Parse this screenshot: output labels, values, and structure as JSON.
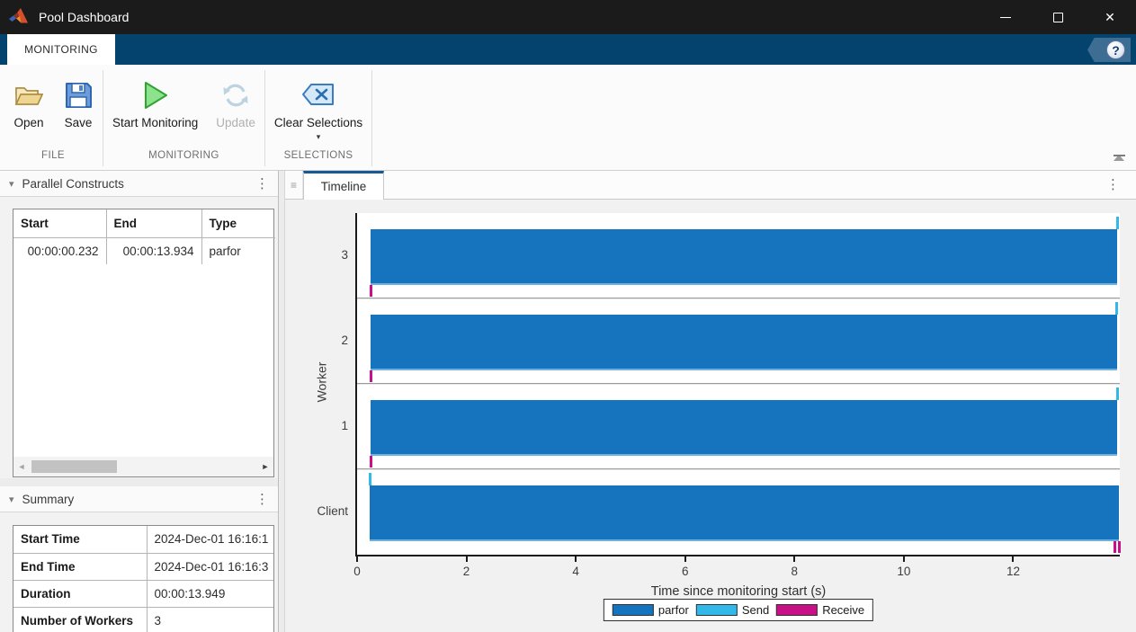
{
  "window": {
    "title": "Pool Dashboard"
  },
  "icons": {
    "close": "✕",
    "help": "?",
    "kebab": "⋮",
    "collapse": "▾",
    "dropdown": "▾",
    "handle": "≡",
    "scroll_left": "◄",
    "scroll_right": "►"
  },
  "ribbon": {
    "tab": "MONITORING"
  },
  "toolbar": {
    "groups": [
      {
        "label": "FILE",
        "buttons": [
          {
            "label": "Open"
          },
          {
            "label": "Save"
          }
        ]
      },
      {
        "label": "MONITORING",
        "buttons": [
          {
            "label": "Start Monitoring"
          },
          {
            "label": "Update",
            "disabled": true
          }
        ]
      },
      {
        "label": "SELECTIONS",
        "buttons": [
          {
            "label": "Clear Selections",
            "has_dropdown": true
          }
        ]
      }
    ]
  },
  "constructs_panel": {
    "title": "Parallel Constructs",
    "table": {
      "columns": [
        "Start",
        "End",
        "Type"
      ],
      "rows": [
        [
          "00:00:00.232",
          "00:00:13.934",
          "parfor"
        ]
      ]
    }
  },
  "summary_panel": {
    "title": "Summary",
    "rows": [
      {
        "label": "Start Time",
        "value": "2024-Dec-01 16:16:1"
      },
      {
        "label": "End Time",
        "value": "2024-Dec-01 16:16:3"
      },
      {
        "label": "Duration",
        "value": "00:00:13.949"
      },
      {
        "label": "Number of Workers",
        "value": "3"
      }
    ]
  },
  "timeline_panel": {
    "tab": "Timeline"
  },
  "chart_data": {
    "type": "timeline-gantt",
    "title": "",
    "xlabel": "Time since monitoring start (s)",
    "ylabel": "Worker",
    "xlim": [
      0,
      13.95
    ],
    "xticks": [
      0,
      2,
      4,
      6,
      8,
      10,
      12
    ],
    "grid": false,
    "legend_position": "below",
    "colors": {
      "parfor": "#1673bd",
      "Send": "#33b9e9",
      "Receive": "#c91187"
    },
    "rows": [
      {
        "label": "3",
        "bars": [
          {
            "series": "parfor",
            "start": 0.25,
            "end": 13.9
          }
        ],
        "markers": [
          {
            "series": "Receive",
            "t": 0.25,
            "pos": "bottom"
          },
          {
            "series": "Send",
            "t": 13.9,
            "pos": "top"
          }
        ]
      },
      {
        "label": "2",
        "bars": [
          {
            "series": "parfor",
            "start": 0.25,
            "end": 13.9
          }
        ],
        "markers": [
          {
            "series": "Receive",
            "t": 0.25,
            "pos": "bottom"
          },
          {
            "series": "Send",
            "t": 13.88,
            "pos": "top"
          }
        ]
      },
      {
        "label": "1",
        "bars": [
          {
            "series": "parfor",
            "start": 0.25,
            "end": 13.9
          }
        ],
        "markers": [
          {
            "series": "Receive",
            "t": 0.25,
            "pos": "bottom"
          },
          {
            "series": "Send",
            "t": 13.9,
            "pos": "top"
          }
        ]
      },
      {
        "label": "Client",
        "bars": [
          {
            "series": "parfor",
            "start": 0.232,
            "end": 13.934
          }
        ],
        "markers": [
          {
            "series": "Send",
            "t": 0.232,
            "pos": "top"
          },
          {
            "series": "Receive",
            "t": 13.85,
            "pos": "bottom"
          },
          {
            "series": "Receive",
            "t": 13.934,
            "pos": "bottom"
          }
        ]
      }
    ],
    "legend": [
      {
        "label": "parfor"
      },
      {
        "label": "Send"
      },
      {
        "label": "Receive"
      }
    ]
  }
}
